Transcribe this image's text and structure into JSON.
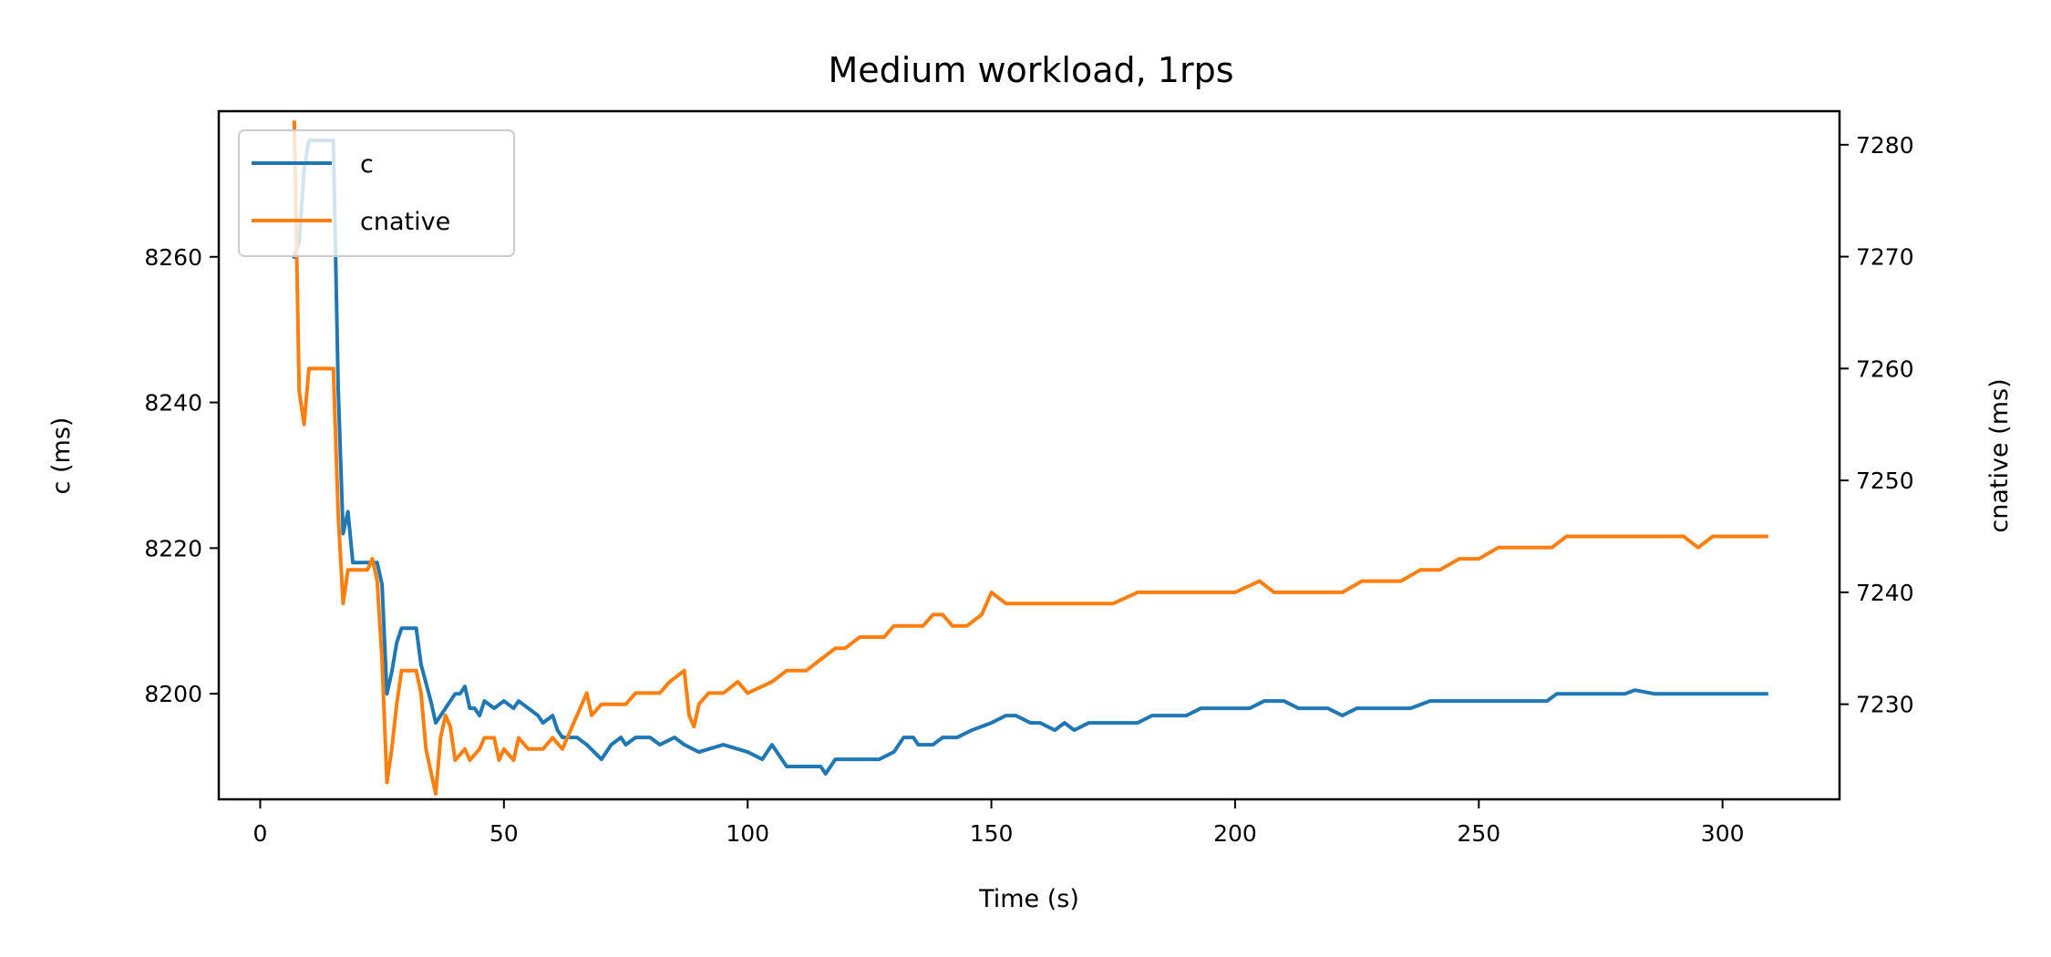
{
  "chart_data": {
    "type": "line",
    "title": "Medium workload, 1rps",
    "xlabel": "Time (s)",
    "ylabel_left": "c (ms)",
    "ylabel_right": "cnative (ms)",
    "xlim": [
      -8.5,
      324
    ],
    "ylim_left": [
      8185.5,
      8280
    ],
    "ylim_right": [
      7221.5,
      7283
    ],
    "x_ticks": [
      0,
      50,
      100,
      150,
      200,
      250,
      300
    ],
    "y_ticks_left": [
      8200,
      8220,
      8240,
      8260
    ],
    "y_ticks_right": [
      7230,
      7240,
      7250,
      7260,
      7270,
      7280
    ],
    "legend": {
      "placement": "upper-left",
      "entries": [
        "c",
        "cnative"
      ]
    },
    "series": [
      {
        "name": "c",
        "axis": "left",
        "color": "#1f77b4",
        "points": [
          [
            7,
            8260
          ],
          [
            8,
            8262
          ],
          [
            9,
            8272
          ],
          [
            10,
            8276
          ],
          [
            12,
            8276
          ],
          [
            14,
            8276
          ],
          [
            15,
            8276
          ],
          [
            16,
            8242
          ],
          [
            17,
            8222
          ],
          [
            18,
            8225
          ],
          [
            19,
            8218
          ],
          [
            20,
            8218
          ],
          [
            22,
            8218
          ],
          [
            24,
            8218
          ],
          [
            25,
            8215
          ],
          [
            26,
            8200
          ],
          [
            27,
            8203
          ],
          [
            28,
            8207
          ],
          [
            29,
            8209
          ],
          [
            32,
            8209
          ],
          [
            33,
            8204
          ],
          [
            35,
            8199
          ],
          [
            36,
            8196
          ],
          [
            38,
            8198
          ],
          [
            40,
            8200
          ],
          [
            41,
            8200
          ],
          [
            42,
            8201
          ],
          [
            43,
            8198
          ],
          [
            44,
            8198
          ],
          [
            45,
            8197
          ],
          [
            46,
            8199
          ],
          [
            48,
            8198
          ],
          [
            50,
            8199
          ],
          [
            52,
            8198
          ],
          [
            53,
            8199
          ],
          [
            55,
            8198
          ],
          [
            57,
            8197
          ],
          [
            58,
            8196
          ],
          [
            60,
            8197
          ],
          [
            61,
            8195
          ],
          [
            62,
            8194
          ],
          [
            65,
            8194
          ],
          [
            67,
            8193
          ],
          [
            70,
            8191
          ],
          [
            72,
            8193
          ],
          [
            74,
            8194
          ],
          [
            75,
            8193
          ],
          [
            77,
            8194
          ],
          [
            80,
            8194
          ],
          [
            82,
            8193
          ],
          [
            85,
            8194
          ],
          [
            87,
            8193
          ],
          [
            90,
            8192
          ],
          [
            95,
            8193
          ],
          [
            100,
            8192
          ],
          [
            103,
            8191
          ],
          [
            105,
            8193
          ],
          [
            108,
            8190
          ],
          [
            112,
            8190
          ],
          [
            115,
            8190
          ],
          [
            116,
            8189
          ],
          [
            118,
            8191
          ],
          [
            120,
            8191
          ],
          [
            122,
            8191
          ],
          [
            125,
            8191
          ],
          [
            127,
            8191
          ],
          [
            130,
            8192
          ],
          [
            132,
            8194
          ],
          [
            134,
            8194
          ],
          [
            135,
            8193
          ],
          [
            138,
            8193
          ],
          [
            140,
            8194
          ],
          [
            143,
            8194
          ],
          [
            146,
            8195
          ],
          [
            150,
            8196
          ],
          [
            153,
            8197
          ],
          [
            155,
            8197
          ],
          [
            158,
            8196
          ],
          [
            160,
            8196
          ],
          [
            163,
            8195
          ],
          [
            165,
            8196
          ],
          [
            167,
            8195
          ],
          [
            170,
            8196
          ],
          [
            175,
            8196
          ],
          [
            178,
            8196
          ],
          [
            180,
            8196
          ],
          [
            183,
            8197
          ],
          [
            186,
            8197
          ],
          [
            190,
            8197
          ],
          [
            193,
            8198
          ],
          [
            197,
            8198
          ],
          [
            200,
            8198
          ],
          [
            203,
            8198
          ],
          [
            206,
            8199
          ],
          [
            210,
            8199
          ],
          [
            213,
            8198
          ],
          [
            216,
            8198
          ],
          [
            219,
            8198
          ],
          [
            222,
            8197
          ],
          [
            225,
            8198
          ],
          [
            228,
            8198
          ],
          [
            232,
            8198
          ],
          [
            236,
            8198
          ],
          [
            240,
            8199
          ],
          [
            243,
            8199
          ],
          [
            246,
            8199
          ],
          [
            250,
            8199
          ],
          [
            253,
            8199
          ],
          [
            257,
            8199
          ],
          [
            260,
            8199
          ],
          [
            262,
            8199
          ],
          [
            264,
            8199
          ],
          [
            266,
            8200
          ],
          [
            268,
            8200
          ],
          [
            272,
            8200
          ],
          [
            275,
            8200
          ],
          [
            280,
            8200
          ],
          [
            282,
            8200.5
          ],
          [
            286,
            8200
          ],
          [
            290,
            8200
          ],
          [
            293,
            8200
          ],
          [
            296,
            8200
          ],
          [
            300,
            8200
          ],
          [
            305,
            8200
          ],
          [
            309,
            8200
          ]
        ]
      },
      {
        "name": "cnative",
        "axis": "right",
        "color": "#ff7f0e",
        "points": [
          [
            7,
            7282
          ],
          [
            8,
            7258
          ],
          [
            9,
            7255
          ],
          [
            10,
            7260
          ],
          [
            12,
            7260
          ],
          [
            14,
            7260
          ],
          [
            15,
            7260
          ],
          [
            16,
            7247
          ],
          [
            17,
            7239
          ],
          [
            18,
            7242
          ],
          [
            20,
            7242
          ],
          [
            22,
            7242
          ],
          [
            23,
            7243
          ],
          [
            24,
            7241
          ],
          [
            25,
            7234
          ],
          [
            26,
            7223
          ],
          [
            27,
            7226
          ],
          [
            28,
            7230
          ],
          [
            29,
            7233
          ],
          [
            32,
            7233
          ],
          [
            33,
            7231
          ],
          [
            34,
            7226
          ],
          [
            35,
            7224
          ],
          [
            36,
            7222
          ],
          [
            37,
            7227
          ],
          [
            38,
            7229
          ],
          [
            39,
            7228
          ],
          [
            40,
            7225
          ],
          [
            42,
            7226
          ],
          [
            43,
            7225
          ],
          [
            45,
            7226
          ],
          [
            46,
            7227
          ],
          [
            48,
            7227
          ],
          [
            49,
            7225
          ],
          [
            50,
            7226
          ],
          [
            52,
            7225
          ],
          [
            53,
            7227
          ],
          [
            55,
            7226
          ],
          [
            58,
            7226
          ],
          [
            60,
            7227
          ],
          [
            62,
            7226
          ],
          [
            63,
            7227
          ],
          [
            65,
            7229
          ],
          [
            67,
            7231
          ],
          [
            68,
            7229
          ],
          [
            70,
            7230
          ],
          [
            72,
            7230
          ],
          [
            75,
            7230
          ],
          [
            77,
            7231
          ],
          [
            80,
            7231
          ],
          [
            82,
            7231
          ],
          [
            84,
            7232
          ],
          [
            87,
            7233
          ],
          [
            88,
            7229
          ],
          [
            89,
            7228
          ],
          [
            90,
            7230
          ],
          [
            92,
            7231
          ],
          [
            95,
            7231
          ],
          [
            98,
            7232
          ],
          [
            100,
            7231
          ],
          [
            105,
            7232
          ],
          [
            108,
            7233
          ],
          [
            112,
            7233
          ],
          [
            115,
            7234
          ],
          [
            118,
            7235
          ],
          [
            120,
            7235
          ],
          [
            123,
            7236
          ],
          [
            125,
            7236
          ],
          [
            128,
            7236
          ],
          [
            130,
            7237
          ],
          [
            133,
            7237
          ],
          [
            136,
            7237
          ],
          [
            138,
            7238
          ],
          [
            140,
            7238
          ],
          [
            142,
            7237
          ],
          [
            145,
            7237
          ],
          [
            148,
            7238
          ],
          [
            150,
            7240
          ],
          [
            153,
            7239
          ],
          [
            155,
            7239
          ],
          [
            158,
            7239
          ],
          [
            160,
            7239
          ],
          [
            162,
            7239
          ],
          [
            165,
            7239
          ],
          [
            170,
            7239
          ],
          [
            175,
            7239
          ],
          [
            180,
            7240
          ],
          [
            185,
            7240
          ],
          [
            190,
            7240
          ],
          [
            195,
            7240
          ],
          [
            200,
            7240
          ],
          [
            205,
            7241
          ],
          [
            208,
            7240
          ],
          [
            212,
            7240
          ],
          [
            215,
            7240
          ],
          [
            218,
            7240
          ],
          [
            222,
            7240
          ],
          [
            226,
            7241
          ],
          [
            230,
            7241
          ],
          [
            234,
            7241
          ],
          [
            238,
            7242
          ],
          [
            242,
            7242
          ],
          [
            246,
            7243
          ],
          [
            250,
            7243
          ],
          [
            254,
            7244
          ],
          [
            258,
            7244
          ],
          [
            262,
            7244
          ],
          [
            265,
            7244
          ],
          [
            268,
            7245
          ],
          [
            270,
            7245
          ],
          [
            273,
            7245
          ],
          [
            276,
            7245
          ],
          [
            280,
            7245
          ],
          [
            284,
            7245
          ],
          [
            288,
            7245
          ],
          [
            292,
            7245
          ],
          [
            295,
            7244
          ],
          [
            298,
            7245
          ],
          [
            301,
            7245
          ],
          [
            305,
            7245
          ],
          [
            309,
            7245
          ]
        ]
      }
    ]
  }
}
